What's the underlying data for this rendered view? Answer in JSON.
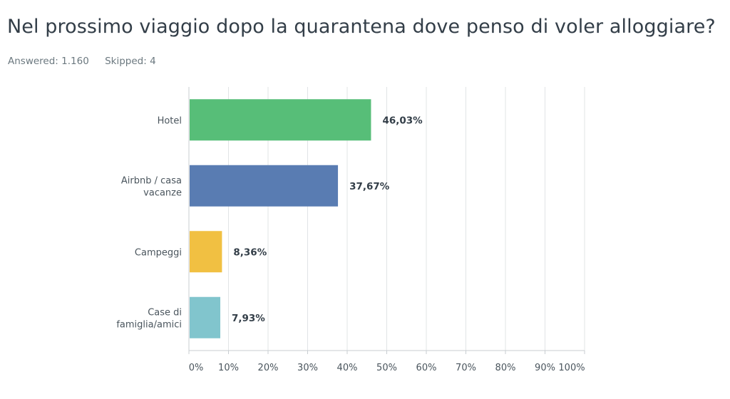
{
  "question": {
    "title": "Nel prossimo viaggio dopo la quarantena dove penso di voler alloggiare?",
    "answered": "Answered: 1.160",
    "skipped": "Skipped: 4"
  },
  "chart_data": {
    "type": "bar",
    "orientation": "horizontal",
    "categories": [
      [
        "Hotel"
      ],
      [
        "Airbnb / casa",
        "vacanze"
      ],
      [
        "Campeggi"
      ],
      [
        "Case di",
        "famiglia/amici"
      ]
    ],
    "values": [
      46.03,
      37.67,
      8.36,
      7.93
    ],
    "value_labels": [
      "46,03%",
      "37,67%",
      "8,36%",
      "7,93%"
    ],
    "colors": [
      "#57be78",
      "#597cb2",
      "#f1c042",
      "#81c5cd"
    ],
    "xlim": [
      0,
      100
    ],
    "xticks": [
      0,
      10,
      20,
      30,
      40,
      50,
      60,
      70,
      80,
      90,
      100
    ],
    "xtick_labels": [
      "0%",
      "10%",
      "20%",
      "30%",
      "40%",
      "50%",
      "60%",
      "70%",
      "80%",
      "90%",
      "100%"
    ],
    "grid": true
  }
}
